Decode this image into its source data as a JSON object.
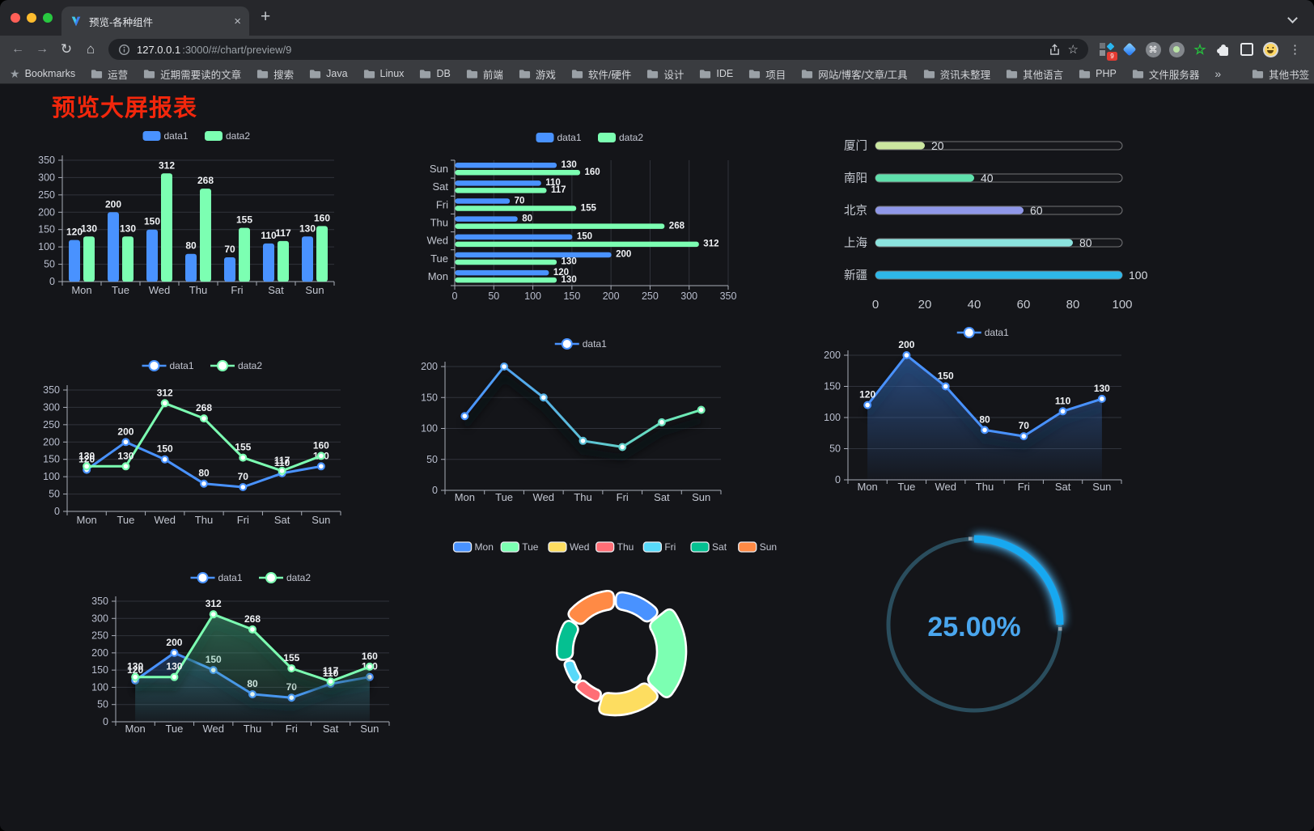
{
  "browser": {
    "tab_title": "预览-各种组件",
    "url_host": "127.0.0.1",
    "url_rest": ":3000/#/chart/preview/9",
    "bookmarks_label": "Bookmarks",
    "bookmark_folders": [
      "运营",
      "近期需要读的文章",
      "搜索",
      "Java",
      "Linux",
      "DB",
      "前端",
      "游戏",
      "软件/硬件",
      "设计",
      "IDE",
      "项目",
      "网站/博客/文章/工具",
      "资讯未整理",
      "其他语言",
      "PHP",
      "文件服务器"
    ],
    "overflow_chevron": "»",
    "other_bookmarks_label": "其他书签",
    "extension_badge": "9",
    "glyphs": {
      "back": "←",
      "forward": "→",
      "reload": "↻",
      "home": "⌂",
      "new_tab": "+",
      "close_tab": "×",
      "menu": "⋮",
      "bookmarks_star": "★",
      "green_star": "☆",
      "command": "⌘"
    }
  },
  "page": {
    "title": "预览大屏报表",
    "title_color": "#f2270c",
    "background": "#141519"
  },
  "chart_data": [
    {
      "id": "grouped-bar",
      "type": "bar",
      "categories": [
        "Mon",
        "Tue",
        "Wed",
        "Thu",
        "Fri",
        "Sat",
        "Sun"
      ],
      "series": [
        {
          "name": "data1",
          "color": "#4992ff",
          "values": [
            120,
            200,
            150,
            80,
            70,
            110,
            130
          ]
        },
        {
          "name": "data2",
          "color": "#7cffb2",
          "values": [
            130,
            130,
            312,
            268,
            155,
            117,
            160
          ]
        }
      ],
      "ylim": [
        0,
        350
      ],
      "yticks": [
        0,
        50,
        100,
        150,
        200,
        250,
        300,
        350
      ],
      "show_labels": true,
      "legend_position": "top",
      "grid": true
    },
    {
      "id": "horizontal-bar",
      "type": "bar",
      "orientation": "horizontal",
      "categories": [
        "Mon",
        "Tue",
        "Wed",
        "Thu",
        "Fri",
        "Sat",
        "Sun"
      ],
      "series": [
        {
          "name": "data1",
          "color": "#4992ff",
          "values": [
            120,
            200,
            150,
            80,
            70,
            110,
            130
          ]
        },
        {
          "name": "data2",
          "color": "#7cffb2",
          "values": [
            130,
            130,
            312,
            268,
            155,
            117,
            160
          ]
        }
      ],
      "xlim": [
        0,
        350
      ],
      "xticks": [
        0,
        50,
        100,
        150,
        200,
        250,
        300,
        350
      ],
      "show_labels": true,
      "legend_position": "top"
    },
    {
      "id": "city-progress",
      "type": "bar",
      "subtype": "progress",
      "items": [
        {
          "label": "厦门",
          "value": 20,
          "color": "#cbe7a0"
        },
        {
          "label": "南阳",
          "value": 40,
          "color": "#5fe0ac"
        },
        {
          "label": "北京",
          "value": 60,
          "color": "#8f97e8"
        },
        {
          "label": "上海",
          "value": 80,
          "color": "#8be3de"
        },
        {
          "label": "新疆",
          "value": 100,
          "color": "#2eb7e8"
        }
      ],
      "xlim": [
        0,
        100
      ],
      "xticks": [
        0,
        20,
        40,
        60,
        80,
        100
      ]
    },
    {
      "id": "two-series-line",
      "type": "line",
      "categories": [
        "Mon",
        "Tue",
        "Wed",
        "Thu",
        "Fri",
        "Sat",
        "Sun"
      ],
      "series": [
        {
          "name": "data1",
          "color": "#4992ff",
          "values": [
            120,
            200,
            150,
            80,
            70,
            110,
            130
          ]
        },
        {
          "name": "data2",
          "color": "#7cffb2",
          "values": [
            130,
            130,
            312,
            268,
            155,
            117,
            160
          ]
        }
      ],
      "ylim": [
        0,
        350
      ],
      "yticks": [
        0,
        50,
        100,
        150,
        200,
        250,
        300,
        350
      ],
      "show_labels": true,
      "legend_position": "top"
    },
    {
      "id": "gradient-line",
      "type": "line",
      "categories": [
        "Mon",
        "Tue",
        "Wed",
        "Thu",
        "Fri",
        "Sat",
        "Sun"
      ],
      "series": [
        {
          "name": "data1",
          "gradient": [
            "#4992ff",
            "#70f0b0"
          ],
          "color": "#4992ff",
          "values": [
            120,
            200,
            150,
            80,
            70,
            110,
            130
          ]
        }
      ],
      "ylim": [
        0,
        200
      ],
      "yticks": [
        0,
        50,
        100,
        150,
        200
      ],
      "show_labels": false,
      "line_shadow": true,
      "legend_position": "top"
    },
    {
      "id": "area-line",
      "type": "area",
      "categories": [
        "Mon",
        "Tue",
        "Wed",
        "Thu",
        "Fri",
        "Sat",
        "Sun"
      ],
      "series": [
        {
          "name": "data1",
          "color": "#4992ff",
          "area_color": "#3a77d2",
          "values": [
            120,
            200,
            150,
            80,
            70,
            110,
            130
          ]
        }
      ],
      "ylim": [
        0,
        200
      ],
      "yticks": [
        0,
        50,
        100,
        150,
        200
      ],
      "show_labels": true,
      "line_shadow": true,
      "legend_position": "top"
    },
    {
      "id": "two-series-area",
      "type": "area",
      "categories": [
        "Mon",
        "Tue",
        "Wed",
        "Thu",
        "Fri",
        "Sat",
        "Sun"
      ],
      "series": [
        {
          "name": "data1",
          "color": "#4992ff",
          "area_color": "#3a77d2",
          "values": [
            120,
            200,
            150,
            80,
            70,
            110,
            130
          ]
        },
        {
          "name": "data2",
          "color": "#7cffb2",
          "area_color": "#45b184",
          "values": [
            130,
            130,
            312,
            268,
            155,
            117,
            160
          ]
        }
      ],
      "ylim": [
        0,
        350
      ],
      "yticks": [
        0,
        50,
        100,
        150,
        200,
        250,
        300,
        350
      ],
      "show_labels": true,
      "line_shadow": true,
      "legend_position": "top"
    },
    {
      "id": "rose-donut",
      "type": "pie",
      "rose": true,
      "donut": true,
      "categories": [
        "Mon",
        "Tue",
        "Wed",
        "Thu",
        "Fri",
        "Sat",
        "Sun"
      ],
      "values": [
        120,
        200,
        150,
        80,
        70,
        110,
        130
      ],
      "colors": [
        "#4992ff",
        "#7cffb2",
        "#fddd60",
        "#ff6e76",
        "#58d9f9",
        "#05c091",
        "#ff8a45"
      ],
      "legend_position": "top"
    },
    {
      "id": "progress-gauge",
      "type": "gauge",
      "percent": 25,
      "label": "25.00%",
      "track_color": "#2a4d5d",
      "arc_color": "#17a8f0",
      "label_color": "#4aa6ee"
    }
  ]
}
